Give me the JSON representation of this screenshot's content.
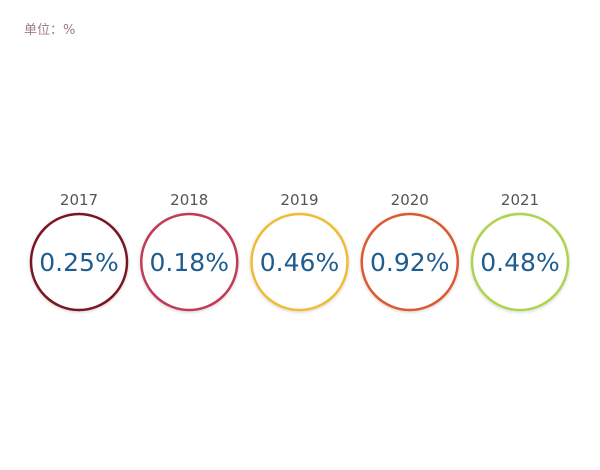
{
  "unit": "单位：%",
  "chart_data": {
    "type": "table",
    "unit": "%",
    "categories": [
      "2017",
      "2018",
      "2019",
      "2020",
      "2021"
    ],
    "values": [
      0.25,
      0.18,
      0.46,
      0.92,
      0.48
    ],
    "value_labels": [
      "0.25%",
      "0.18%",
      "0.46%",
      "0.92%",
      "0.48%"
    ],
    "colors": [
      "#7a1324",
      "#c23a57",
      "#efbd34",
      "#dc5a32",
      "#aed44f"
    ],
    "value_text_color": "#1f5d8f",
    "grid": false
  }
}
